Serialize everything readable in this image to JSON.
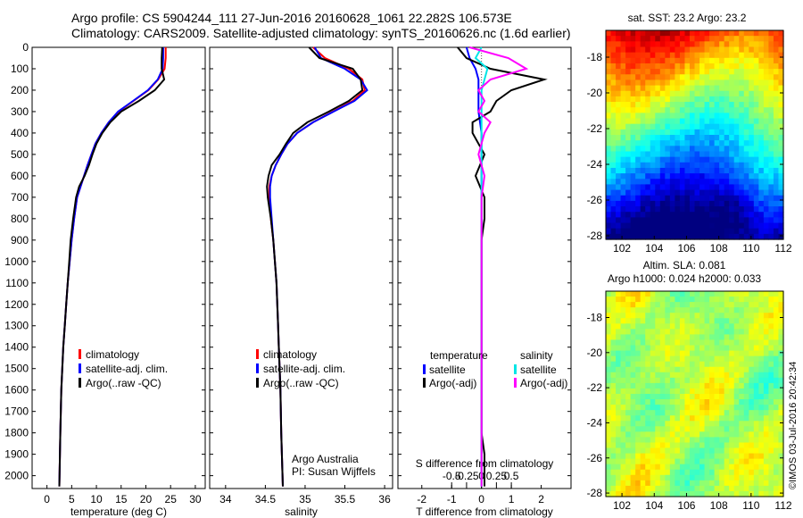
{
  "header": {
    "line1": "Argo profile: CS 5904244_111 27-Jun-2016 20160628_1061 22.282S 106.573E",
    "line2": "Climatology: CARS2009. Satellite-adjusted climatology: synTS_20160626.nc (1.6d earlier)"
  },
  "colors": {
    "climatology": "#ff0000",
    "satellite": "#0000ff",
    "argo": "#000000",
    "t_sat": "#0000ff",
    "s_sat": "#00e5e5",
    "s_argo": "#ff00ff",
    "t_argo": "#000000"
  },
  "depth_axis": {
    "ticks": [
      0,
      100,
      200,
      300,
      400,
      500,
      600,
      700,
      800,
      900,
      1000,
      1100,
      1200,
      1300,
      1400,
      1500,
      1600,
      1700,
      1800,
      1900,
      2000
    ],
    "range": [
      0,
      2060
    ]
  },
  "temp_panel": {
    "xlabel": "temperature (deg C)",
    "xticks": [
      0,
      5,
      10,
      15,
      20,
      25,
      30
    ],
    "xlim": [
      -3,
      32
    ],
    "legend": [
      "climatology",
      "satellite-adj. clim.",
      "Argo(..raw -QC)"
    ]
  },
  "sal_panel": {
    "xlabel": "salinity",
    "xticks": [
      34,
      34.5,
      35,
      35.5,
      36
    ],
    "xtick_labels": [
      "34",
      "34.5",
      "35",
      "35.5",
      "36"
    ],
    "xlim": [
      33.8,
      36.1
    ],
    "legend": [
      "climatology",
      "satellite-adj. clim.",
      "Argo(..raw -QC)"
    ],
    "credit1": "Argo Australia",
    "credit2": "PI: Susan Wijffels"
  },
  "diff_panel": {
    "xlabel": "T difference from climatology",
    "xlabel2": "S difference from climatology",
    "xticks": [
      -2,
      -1,
      0,
      1,
      2
    ],
    "xlim": [
      -2.8,
      3.0
    ],
    "s_ticks": [
      -0.5,
      -0.25,
      0,
      0.25,
      0.5
    ],
    "s_tick_labels": [
      "-0.5",
      "-0.25",
      "0",
      "0.25",
      "0.5"
    ],
    "legend_temp_title": "temperature",
    "legend_sal_title": "salinity",
    "legend": [
      "satellite",
      "Argo(-adj)",
      "satellite",
      "Argo(-adj)"
    ]
  },
  "sst_map": {
    "title": "sat. SST: 23.2  Argo: 23.2",
    "xticks": [
      102,
      104,
      106,
      108,
      110,
      112
    ],
    "yticks": [
      -18,
      -20,
      -22,
      -24,
      -26,
      -28
    ]
  },
  "sla_map": {
    "title1": "Altim. SLA: 0.081",
    "title2": "Argo h1000: 0.024 h2000: 0.033",
    "xticks": [
      102,
      104,
      106,
      108,
      110,
      112
    ],
    "yticks": [
      -18,
      -20,
      -22,
      -24,
      -26,
      -28
    ]
  },
  "credit_vertical": "©IMOS 03-Jul-2016 20:42:34",
  "chart_data": [
    {
      "type": "line",
      "title": "",
      "xlabel": "temperature (deg C)",
      "ylabel": "",
      "series": [
        {
          "name": "climatology",
          "x": [
            24,
            24,
            23.8,
            22.5,
            20.5,
            17.5,
            14.5,
            12.5,
            11,
            9.8,
            9,
            8.2,
            7.5,
            6.8,
            6.1,
            5.5,
            5,
            4.6,
            4.2,
            3.9,
            3.6,
            3.3,
            3.1,
            2.9,
            2.7,
            2.5
          ],
          "y": [
            0,
            50,
            100,
            150,
            200,
            250,
            300,
            350,
            400,
            450,
            500,
            550,
            600,
            650,
            700,
            800,
            900,
            1000,
            1100,
            1200,
            1300,
            1400,
            1500,
            1600,
            1800,
            2050
          ]
        },
        {
          "name": "satellite-adj. clim.",
          "x": [
            23.5,
            23.5,
            23.4,
            22.4,
            20.4,
            17.4,
            14.4,
            12.5,
            11,
            9.8,
            9,
            8.2,
            7.5,
            6.8,
            6.1,
            5.5,
            5,
            4.6,
            4.2,
            3.9,
            3.6,
            3.3,
            3.1,
            2.9,
            2.7,
            2.5
          ],
          "y": [
            0,
            50,
            100,
            150,
            200,
            250,
            300,
            350,
            400,
            450,
            500,
            550,
            600,
            650,
            700,
            800,
            900,
            1000,
            1100,
            1200,
            1300,
            1400,
            1500,
            1600,
            1800,
            2050
          ]
        },
        {
          "name": "Argo(..raw -QC)",
          "x": [
            23.3,
            23.2,
            23.2,
            23.7,
            21.8,
            18.6,
            15,
            12.8,
            11.2,
            10,
            9.2,
            8.5,
            7.6,
            6.5,
            5.9,
            5.3,
            4.8,
            4.5,
            4.2,
            3.9,
            3.6,
            3.3,
            3.1,
            2.9,
            2.7,
            2.5
          ],
          "y": [
            0,
            50,
            100,
            150,
            200,
            250,
            300,
            350,
            400,
            450,
            500,
            550,
            600,
            650,
            700,
            800,
            900,
            1000,
            1100,
            1200,
            1300,
            1400,
            1500,
            1600,
            1800,
            2050
          ]
        }
      ]
    },
    {
      "type": "line",
      "title": "",
      "xlabel": "salinity",
      "ylabel": "",
      "series": [
        {
          "name": "climatology",
          "x": [
            35.1,
            35.25,
            35.55,
            35.72,
            35.75,
            35.6,
            35.35,
            35.1,
            34.9,
            34.78,
            34.7,
            34.63,
            34.58,
            34.55,
            34.55,
            34.57,
            34.6,
            34.62,
            34.64,
            34.65,
            34.66,
            34.67,
            34.68,
            34.69,
            34.7,
            34.72
          ],
          "y": [
            0,
            50,
            100,
            150,
            200,
            250,
            300,
            350,
            400,
            450,
            500,
            550,
            600,
            650,
            700,
            800,
            900,
            1000,
            1100,
            1200,
            1300,
            1400,
            1500,
            1600,
            1800,
            2050
          ]
        },
        {
          "name": "satellite-adj. clim.",
          "x": [
            35.12,
            35.2,
            35.5,
            35.7,
            35.78,
            35.62,
            35.36,
            35.1,
            34.9,
            34.78,
            34.7,
            34.63,
            34.58,
            34.56,
            34.56,
            34.58,
            34.6,
            34.62,
            34.64,
            34.65,
            34.66,
            34.67,
            34.68,
            34.69,
            34.7,
            34.72
          ],
          "y": [
            0,
            50,
            100,
            150,
            200,
            250,
            300,
            350,
            400,
            450,
            500,
            550,
            600,
            650,
            700,
            800,
            900,
            1000,
            1100,
            1200,
            1300,
            1400,
            1500,
            1600,
            1800,
            2050
          ]
        },
        {
          "name": "Argo(..raw -QC)",
          "x": [
            35.05,
            35.18,
            35.6,
            35.7,
            35.72,
            35.55,
            35.3,
            35.03,
            34.85,
            34.76,
            34.68,
            34.58,
            34.54,
            34.52,
            34.53,
            34.57,
            34.6,
            34.62,
            34.64,
            34.65,
            34.66,
            34.67,
            34.68,
            34.69,
            34.7,
            34.72
          ],
          "y": [
            0,
            50,
            100,
            150,
            200,
            250,
            300,
            350,
            400,
            450,
            500,
            550,
            600,
            650,
            700,
            800,
            900,
            1000,
            1100,
            1200,
            1300,
            1400,
            1500,
            1600,
            1800,
            2050
          ]
        }
      ]
    },
    {
      "type": "line",
      "title": "",
      "xlabel": "T difference from climatology",
      "ylabel": "",
      "series": [
        {
          "name": "satellite",
          "x": [
            -0.5,
            -0.4,
            -0.2,
            -0.1,
            -0.1,
            -0.1,
            -0.1,
            -0.05,
            0,
            0,
            0,
            0,
            0,
            0,
            0,
            0,
            0,
            0,
            0,
            0,
            0
          ],
          "y": [
            0,
            50,
            100,
            150,
            200,
            250,
            300,
            350,
            400,
            500,
            600,
            700,
            800,
            900,
            1000,
            1200,
            1400,
            1600,
            1800,
            1900,
            2050
          ]
        },
        {
          "name": "Argo(-adj)",
          "x": [
            -0.8,
            -0.5,
            0.3,
            2.1,
            1.0,
            0.5,
            0.3,
            -0.3,
            -0.3,
            0.1,
            -0.2,
            0.1,
            0.1,
            0,
            0,
            0,
            0,
            0,
            0,
            0.1,
            0.1
          ],
          "y": [
            0,
            50,
            100,
            150,
            200,
            250,
            300,
            350,
            400,
            500,
            600,
            700,
            800,
            900,
            1000,
            1200,
            1400,
            1600,
            1800,
            1900,
            2050
          ]
        },
        {
          "name": "satellite",
          "x": [
            0.0,
            -0.2,
            0.2,
            0.1,
            0,
            0,
            0,
            0,
            0,
            0,
            0,
            0,
            0,
            0,
            0,
            0,
            0,
            0,
            0,
            0,
            0
          ],
          "y": [
            0,
            50,
            100,
            150,
            200,
            250,
            300,
            350,
            400,
            500,
            600,
            700,
            800,
            900,
            1000,
            1200,
            1400,
            1600,
            1800,
            1900,
            2050
          ]
        },
        {
          "name": "Argo(-adj)",
          "x": [
            -0.4,
            0.9,
            1.5,
            0.3,
            -0.1,
            0.1,
            -0.1,
            0.3,
            0.1,
            -0.1,
            0.1,
            0,
            0,
            0,
            0,
            0,
            0,
            0,
            0,
            0,
            0
          ],
          "y": [
            0,
            50,
            100,
            150,
            200,
            250,
            300,
            350,
            400,
            500,
            600,
            700,
            800,
            900,
            1000,
            1200,
            1400,
            1600,
            1800,
            1900,
            2050
          ]
        }
      ]
    }
  ]
}
